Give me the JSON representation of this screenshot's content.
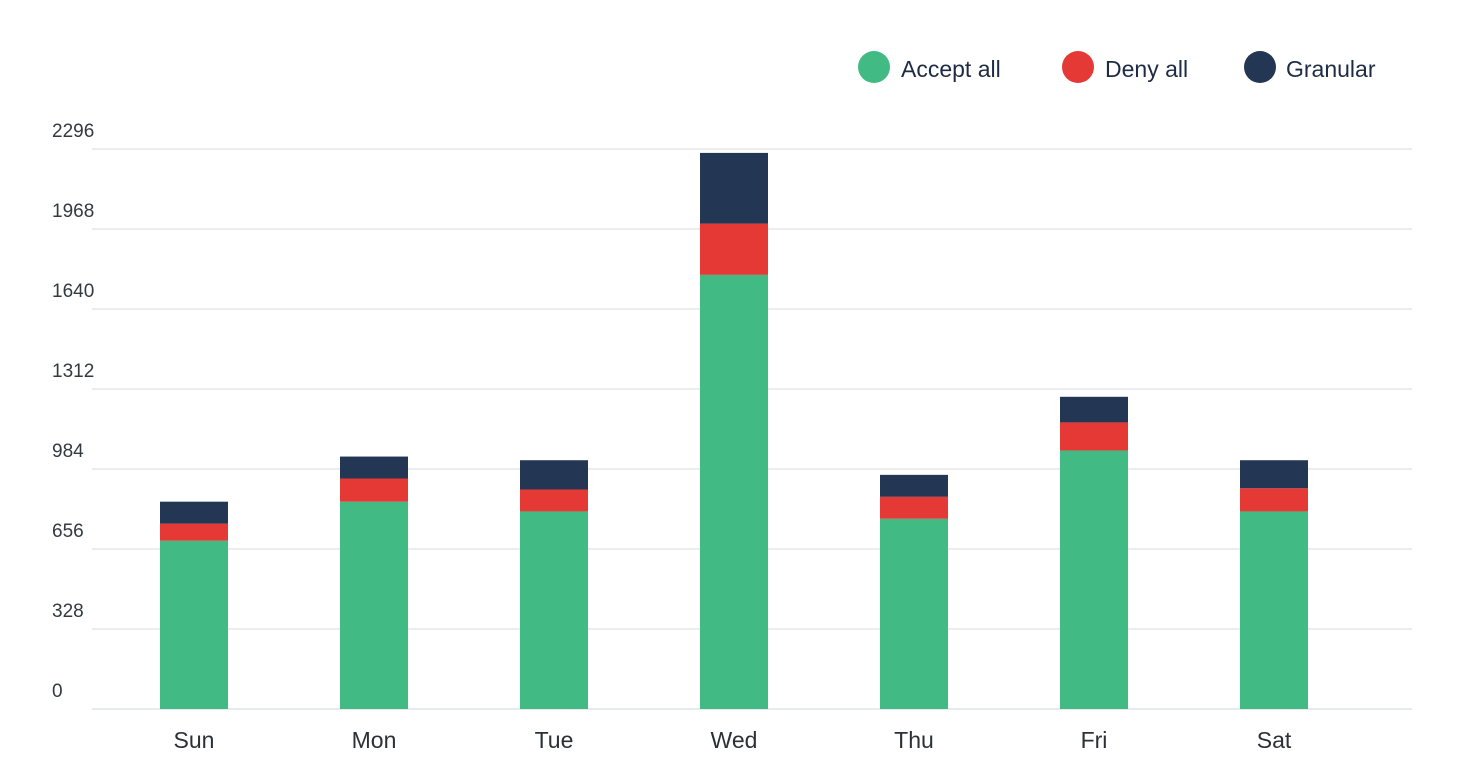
{
  "chart_data": {
    "type": "bar",
    "stacked": true,
    "categories": [
      "Sun",
      "Mon",
      "Tue",
      "Wed",
      "Thu",
      "Fri",
      "Sat"
    ],
    "series": [
      {
        "name": "Accept all",
        "color": "#41ba83",
        "values": [
          690,
          850,
          810,
          1780,
          780,
          1060,
          810
        ]
      },
      {
        "name": "Deny all",
        "color": "#e53935",
        "values": [
          70,
          95,
          90,
          210,
          90,
          115,
          95
        ]
      },
      {
        "name": "Granular",
        "color": "#233754",
        "values": [
          90,
          90,
          120,
          290,
          90,
          105,
          115
        ]
      }
    ],
    "yticks": [
      0,
      328,
      656,
      984,
      1312,
      1640,
      1968,
      2296
    ],
    "ylim": [
      0,
      2296
    ],
    "grid": true,
    "legend_position": "top-right",
    "title": "",
    "xlabel": "",
    "ylabel": ""
  }
}
